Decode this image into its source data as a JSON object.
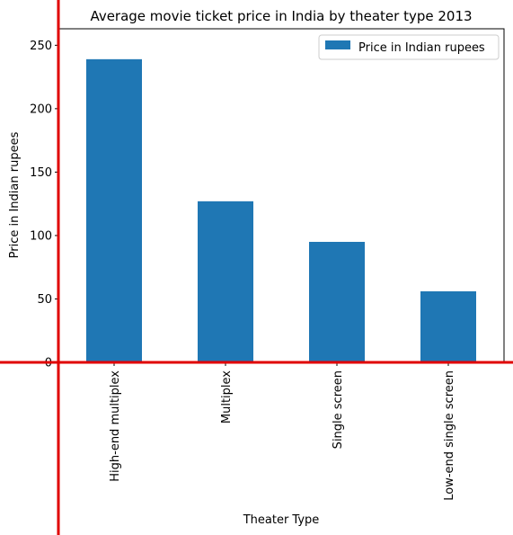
{
  "chart_data": {
    "type": "bar",
    "title": "Average movie ticket price in India by theater type 2013",
    "xlabel": "Theater Type",
    "ylabel": "Price in Indian rupees",
    "categories": [
      "High-end multiplex",
      "Multiplex",
      "Single screen",
      "Low-end single screen"
    ],
    "series": [
      {
        "name": "Price in Indian rupees",
        "values": [
          239,
          127,
          95,
          56
        ],
        "color": "#1f77b4"
      }
    ],
    "ylim": [
      0,
      263
    ],
    "yticks": [
      0,
      50,
      100,
      150,
      200,
      250
    ],
    "grid": false,
    "legend": "top-right",
    "overlay_line_color": "#e00000"
  }
}
